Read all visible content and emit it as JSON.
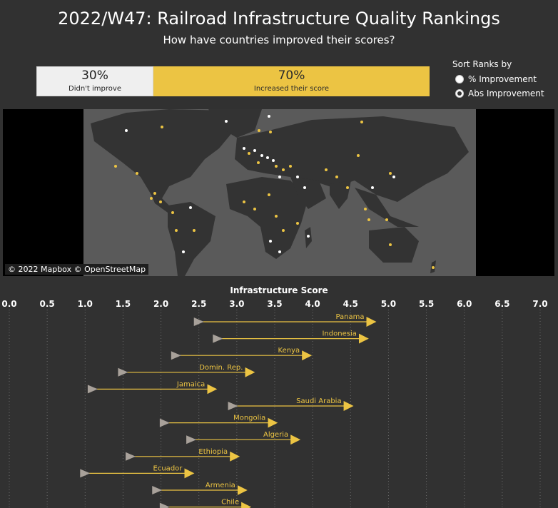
{
  "header": {
    "title": "2022/W47: Railroad Infrastructure Quality Rankings",
    "subtitle": "How have countries improved their scores?"
  },
  "summary": {
    "no_improve": {
      "pct": "30%",
      "label": "Didn't improve",
      "value": 0.3
    },
    "improved": {
      "pct": "70%",
      "label": "Increased their score",
      "value": 0.7
    }
  },
  "sort": {
    "title": "Sort Ranks by",
    "options": [
      "% Improvement",
      "Abs Improvement"
    ],
    "selected": "Abs Improvement"
  },
  "map": {
    "credit": "© 2022 Mapbox © OpenStreetMap"
  },
  "colors": {
    "background": "#313131",
    "accent": "#ecc443",
    "start_marker": "#a8a19a",
    "land": "#333333",
    "ocean": "#5a5a5a",
    "no_improve_fill": "#efefef"
  },
  "chart_data": {
    "type": "arrow-range",
    "title": "Infrastructure Score",
    "xlim": [
      0,
      7
    ],
    "ticks": [
      "0.0",
      "0.5",
      "1.0",
      "1.5",
      "2.0",
      "2.5",
      "3.0",
      "3.5",
      "4.0",
      "4.5",
      "5.0",
      "5.5",
      "6.0",
      "6.5",
      "7.0"
    ],
    "series": [
      {
        "name": "Panama",
        "start": 2.5,
        "end": 4.85
      },
      {
        "name": "Indonesia",
        "start": 2.75,
        "end": 4.75
      },
      {
        "name": "Kenya",
        "start": 2.2,
        "end": 4.0
      },
      {
        "name": "Domin. Rep.",
        "start": 1.5,
        "end": 3.25
      },
      {
        "name": "Jamaica",
        "start": 1.1,
        "end": 2.75
      },
      {
        "name": "Saudi Arabia",
        "start": 2.95,
        "end": 4.55
      },
      {
        "name": "Mongolia",
        "start": 2.05,
        "end": 3.55
      },
      {
        "name": "Algeria",
        "start": 2.4,
        "end": 3.85
      },
      {
        "name": "Ethiopia",
        "start": 1.6,
        "end": 3.05
      },
      {
        "name": "Ecuador",
        "start": 1.0,
        "end": 2.45
      },
      {
        "name": "Armenia",
        "start": 1.95,
        "end": 3.15
      },
      {
        "name": "Chile",
        "start": 2.05,
        "end": 3.2
      }
    ]
  }
}
